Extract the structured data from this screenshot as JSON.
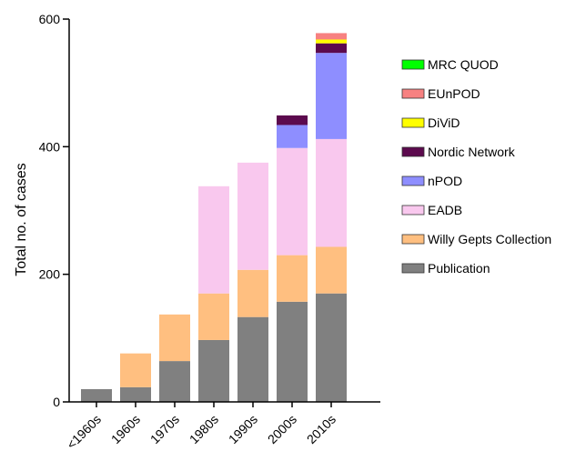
{
  "chart_data": {
    "type": "bar",
    "stacked": true,
    "title": "",
    "xlabel": "",
    "ylabel": "Total no. of cases",
    "ylim": [
      0,
      600
    ],
    "yticks": [
      0,
      200,
      400,
      600
    ],
    "grid": false,
    "legend_position": "right",
    "categories": [
      "<1960s",
      "1960s",
      "1970s",
      "1980s",
      "1990s",
      "2000s",
      "2010s"
    ],
    "series": [
      {
        "name": "Publication",
        "color": "#808080",
        "values": [
          20,
          23,
          64,
          97,
          133,
          157,
          170
        ]
      },
      {
        "name": "Willy Gepts Collection",
        "color": "#FFBF80",
        "values": [
          0,
          53,
          73,
          73,
          74,
          73,
          73
        ]
      },
      {
        "name": "EADB",
        "color": "#F9C8EE",
        "values": [
          0,
          0,
          0,
          168,
          168,
          168,
          169
        ]
      },
      {
        "name": "nPOD",
        "color": "#8E8EFF",
        "values": [
          0,
          0,
          0,
          0,
          0,
          36,
          135
        ]
      },
      {
        "name": "Nordic Network",
        "color": "#5C0A4E",
        "values": [
          0,
          0,
          0,
          0,
          0,
          15,
          15
        ]
      },
      {
        "name": "DiViD",
        "color": "#FFFF00",
        "values": [
          0,
          0,
          0,
          0,
          0,
          0,
          6
        ]
      },
      {
        "name": "EUnPOD",
        "color": "#F78181",
        "values": [
          0,
          0,
          0,
          0,
          0,
          0,
          10
        ]
      },
      {
        "name": "MRC QUOD",
        "color": "#00FF00",
        "values": [
          0,
          0,
          0,
          0,
          0,
          0,
          0
        ]
      }
    ]
  }
}
